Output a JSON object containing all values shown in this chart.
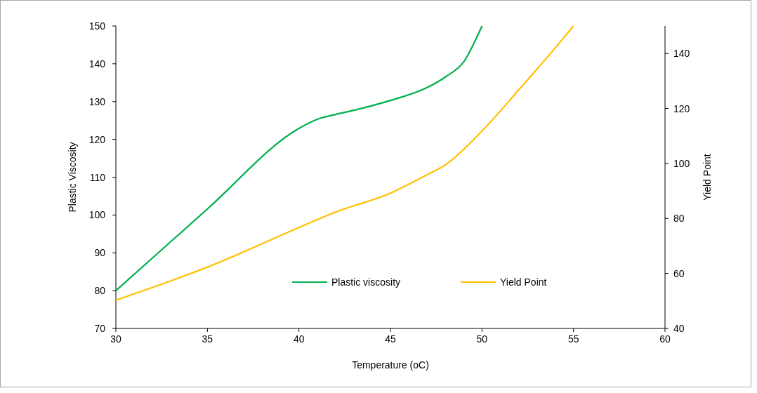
{
  "chart_data": {
    "type": "line",
    "xlabel": "Temperature (oC)",
    "ylabel": "Plastic Viscosity",
    "y2label": "Yield Point",
    "xlim": [
      30,
      60
    ],
    "xticks": [
      30,
      35,
      40,
      45,
      50,
      55,
      60
    ],
    "ylim": [
      70,
      150
    ],
    "yticks": [
      70,
      80,
      90,
      100,
      110,
      120,
      130,
      140,
      150
    ],
    "y2lim": [
      40,
      150
    ],
    "y2ticks": [
      40,
      60,
      80,
      100,
      120,
      140
    ],
    "legend": "bottom",
    "grid": false,
    "line_style": "solid",
    "series": [
      {
        "name": "Plastic viscosity",
        "color": "#00b050",
        "x": [
          30,
          35,
          40,
          41,
          42,
          43,
          45,
          47,
          48,
          49,
          50
        ],
        "values": [
          80,
          101.6,
          122.9,
          125.3,
          126.6,
          127.7,
          130.3,
          133.7,
          136.5,
          140.5,
          150
        ]
      },
      {
        "name": "Yield Point",
        "color": "#ffc000",
        "axis": "y2",
        "x": [
          30,
          35,
          40,
          42,
          45,
          47,
          48,
          50,
          52,
          54,
          55
        ],
        "values": [
          50.3,
          62.3,
          76.7,
          82.3,
          89.2,
          95.9,
          99.5,
          111.8,
          126.7,
          142,
          150
        ]
      }
    ]
  }
}
